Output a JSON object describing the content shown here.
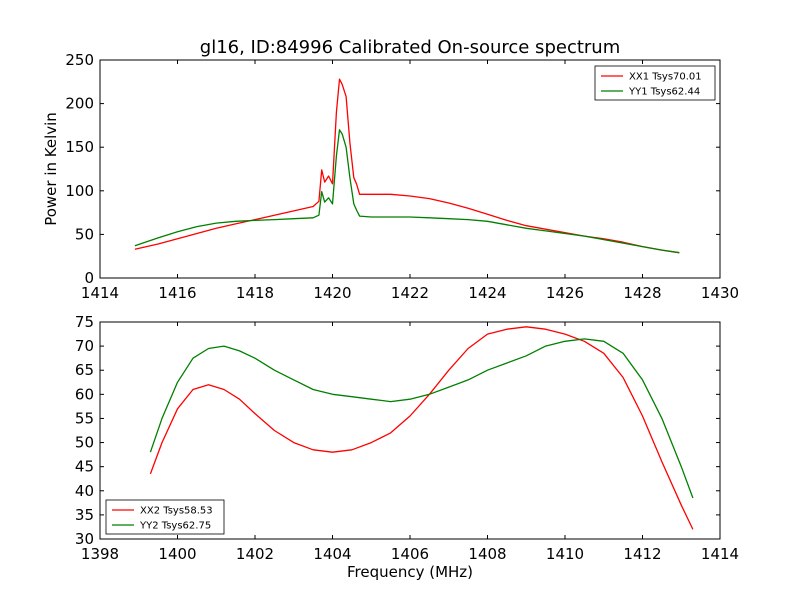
{
  "chart_data": [
    {
      "type": "line",
      "title": "gl16, ID:84996 Calibrated On-source spectrum",
      "xlabel": "",
      "ylabel": "Power in Kelvin",
      "xlim": [
        1414,
        1430
      ],
      "ylim": [
        0,
        250
      ],
      "xticks": [
        "1414",
        "1416",
        "1418",
        "1420",
        "1422",
        "1424",
        "1426",
        "1428",
        "1430"
      ],
      "yticks": [
        "0",
        "50",
        "100",
        "150",
        "200",
        "250"
      ],
      "grid": false,
      "legend_position": "top-right",
      "series": [
        {
          "name": "XX1 Tsys70.01",
          "color": "#ff0000",
          "x": [
            1414.9,
            1415.5,
            1416.0,
            1416.5,
            1417.0,
            1417.5,
            1418.0,
            1418.5,
            1419.0,
            1419.5,
            1419.65,
            1419.72,
            1419.8,
            1419.9,
            1420.0,
            1420.1,
            1420.18,
            1420.25,
            1420.35,
            1420.45,
            1420.55,
            1420.62,
            1420.7,
            1421.0,
            1421.5,
            1422.0,
            1422.5,
            1423.0,
            1423.5,
            1424.0,
            1424.5,
            1425.0,
            1425.5,
            1426.0,
            1426.5,
            1427.0,
            1427.5,
            1428.0,
            1428.5,
            1428.95
          ],
          "y": [
            33,
            39,
            45,
            51,
            57,
            62,
            67,
            72,
            77,
            82,
            88,
            124,
            110,
            117,
            108,
            190,
            228,
            222,
            208,
            155,
            115,
            108,
            96,
            96,
            96,
            94,
            91,
            86,
            80,
            73,
            66,
            60,
            56,
            52,
            48,
            45,
            41,
            36,
            32,
            29
          ]
        },
        {
          "name": "YY1 Tsys62.44",
          "color": "#008000",
          "x": [
            1414.9,
            1415.5,
            1416.0,
            1416.5,
            1417.0,
            1417.5,
            1418.0,
            1418.5,
            1419.0,
            1419.5,
            1419.65,
            1419.72,
            1419.8,
            1419.9,
            1420.0,
            1420.1,
            1420.18,
            1420.25,
            1420.35,
            1420.45,
            1420.55,
            1420.62,
            1420.7,
            1421.0,
            1421.5,
            1422.0,
            1422.5,
            1423.0,
            1423.5,
            1424.0,
            1424.5,
            1425.0,
            1425.5,
            1426.0,
            1426.5,
            1427.0,
            1427.5,
            1428.0,
            1428.5,
            1428.95
          ],
          "y": [
            37,
            46,
            53,
            59,
            63,
            65,
            66,
            67,
            68,
            69,
            72,
            99,
            87,
            92,
            85,
            140,
            170,
            165,
            150,
            115,
            85,
            78,
            71,
            70,
            70,
            70,
            69,
            68,
            67,
            65,
            61,
            57,
            54,
            51,
            48,
            44,
            40,
            36,
            32,
            29
          ]
        }
      ]
    },
    {
      "type": "line",
      "title": "",
      "xlabel": "Frequency (MHz)",
      "ylabel": "",
      "xlim": [
        1398,
        1414
      ],
      "ylim": [
        30,
        75
      ],
      "xticks": [
        "1398",
        "1400",
        "1402",
        "1404",
        "1406",
        "1408",
        "1410",
        "1412",
        "1414"
      ],
      "yticks": [
        "30",
        "35",
        "40",
        "45",
        "50",
        "55",
        "60",
        "65",
        "70",
        "75"
      ],
      "grid": false,
      "legend_position": "bottom-left",
      "series": [
        {
          "name": "XX2 Tsys58.53",
          "color": "#ff0000",
          "x": [
            1399.3,
            1399.6,
            1400.0,
            1400.4,
            1400.8,
            1401.2,
            1401.6,
            1402.0,
            1402.5,
            1403.0,
            1403.5,
            1404.0,
            1404.5,
            1405.0,
            1405.5,
            1406.0,
            1406.5,
            1407.0,
            1407.5,
            1408.0,
            1408.5,
            1409.0,
            1409.5,
            1410.0,
            1410.5,
            1411.0,
            1411.5,
            1412.0,
            1412.5,
            1413.0,
            1413.3
          ],
          "y": [
            43.5,
            50,
            57,
            61,
            62,
            61,
            59,
            56,
            52.5,
            50,
            48.5,
            48,
            48.5,
            50,
            52,
            55.5,
            60,
            65,
            69.5,
            72.5,
            73.5,
            74,
            73.5,
            72.5,
            71,
            68.5,
            63.5,
            55.5,
            46,
            37,
            32
          ]
        },
        {
          "name": "YY2 Tsys62.75",
          "color": "#008000",
          "x": [
            1399.3,
            1399.6,
            1400.0,
            1400.4,
            1400.8,
            1401.2,
            1401.6,
            1402.0,
            1402.5,
            1403.0,
            1403.5,
            1404.0,
            1404.5,
            1405.0,
            1405.5,
            1406.0,
            1406.5,
            1407.0,
            1407.5,
            1408.0,
            1408.5,
            1409.0,
            1409.5,
            1410.0,
            1410.5,
            1411.0,
            1411.5,
            1412.0,
            1412.5,
            1413.0,
            1413.3
          ],
          "y": [
            48,
            55,
            62.5,
            67.5,
            69.5,
            70,
            69,
            67.5,
            65,
            63,
            61,
            60,
            59.5,
            59,
            58.5,
            59,
            60,
            61.5,
            63,
            65,
            66.5,
            68,
            70,
            71,
            71.5,
            71,
            68.5,
            63,
            55,
            45,
            38.5
          ]
        }
      ]
    }
  ]
}
